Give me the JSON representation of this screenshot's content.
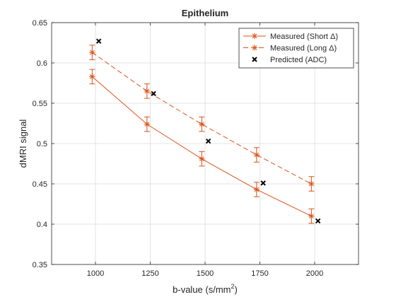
{
  "chart_data": {
    "type": "line",
    "title": "Epithelium",
    "xlabel": "b-value (s/mm",
    "xlabel_sup": "2",
    "xlabel_close": ")",
    "ylabel": "dMRI signal",
    "xlim": [
      800,
      2200
    ],
    "ylim": [
      0.35,
      0.65
    ],
    "xticks": [
      1000,
      1250,
      1500,
      1750,
      2000
    ],
    "yticks": [
      0.35,
      0.4,
      0.45,
      0.5,
      0.55,
      0.6,
      0.65
    ],
    "xtick_labels": [
      "1000",
      "1250",
      "1500",
      "1750",
      "2000"
    ],
    "ytick_labels": [
      "0.35",
      "0.4",
      "0.45",
      "0.5",
      "0.55",
      "0.6",
      "0.65"
    ],
    "grid": true,
    "legend_position": "top-right",
    "series": [
      {
        "name": "Measured (Short Δ)",
        "style": "solid",
        "marker": "asterisk",
        "color": "#d95319",
        "x": [
          985,
          1235,
          1485,
          1735,
          1985
        ],
        "y": [
          0.583,
          0.524,
          0.481,
          0.443,
          0.41
        ],
        "err": [
          0.009,
          0.009,
          0.009,
          0.009,
          0.009
        ]
      },
      {
        "name": "Measured (Long Δ)",
        "style": "dashed",
        "marker": "asterisk",
        "color": "#d95319",
        "x": [
          985,
          1235,
          1485,
          1735,
          1985
        ],
        "y": [
          0.613,
          0.565,
          0.524,
          0.486,
          0.45
        ],
        "err": [
          0.009,
          0.009,
          0.009,
          0.009,
          0.009
        ]
      },
      {
        "name": "Predicted (ADC)",
        "style": "none",
        "marker": "x",
        "color": "#000000",
        "x": [
          1015,
          1265,
          1515,
          1765,
          2015
        ],
        "y": [
          0.627,
          0.562,
          0.503,
          0.451,
          0.404
        ]
      }
    ]
  }
}
